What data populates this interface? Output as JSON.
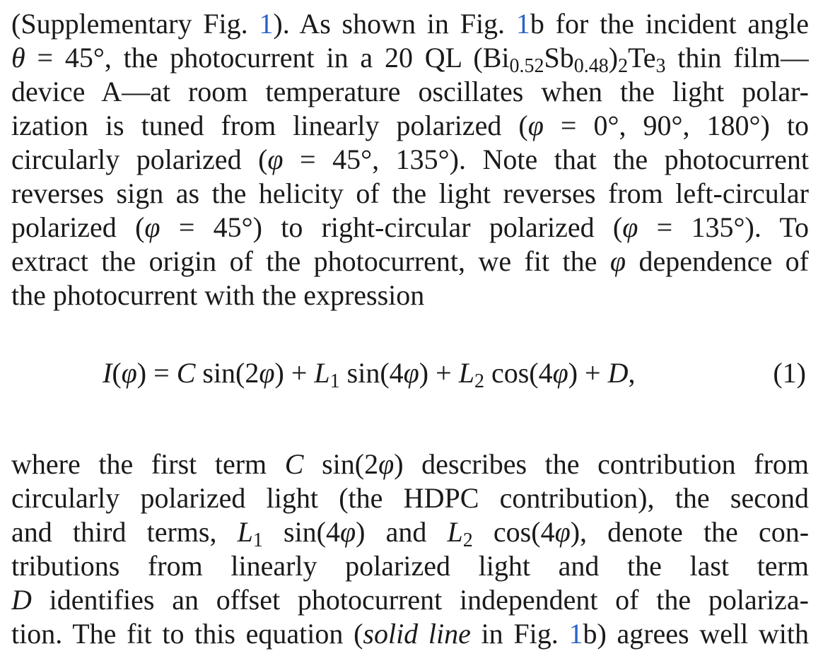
{
  "paragraph1": {
    "l1_a": "(Supplementary Fig. ",
    "l1_link1": "1",
    "l1_b": "). As shown in Fig. ",
    "l1_link2": "1",
    "l1_c": "b for the incident angle",
    "l2_theta": "θ",
    "l2_a": " = 45°, the photocurrent in a 20 QL (Bi",
    "l2_sub1": "0.52",
    "l2_b": "Sb",
    "l2_sub2": "0.48",
    "l2_c": ")",
    "l2_sub3": "2",
    "l2_d": "Te",
    "l2_sub4": "3",
    "l2_e": " thin film—",
    "l3": "device A—at room temperature oscillates when the light polar-",
    "l4_a": "ization is tuned from linearly polarized (",
    "l4_phi": "φ",
    "l4_b": " = 0°, 90°, 180°) to",
    "l5_a": "circularly polarized (",
    "l5_phi": "φ",
    "l5_b": " = 45°, 135°). Note that the photocurrent",
    "l6": "reverses sign as the helicity of the light reverses from left-circular",
    "l7_a": "polarized (",
    "l7_phi1": "φ",
    "l7_b": " = 45°) to right-circular polarized (",
    "l7_phi2": "φ",
    "l7_c": " = 135°). To",
    "l8_a": "extract the origin of the photocurrent, we fit the ",
    "l8_phi": "φ",
    "l8_b": " dependence of",
    "l9": "the photocurrent with the expression"
  },
  "equation": {
    "I": "I",
    "lp1": "(",
    "phi1": "φ",
    "rp1": ") = ",
    "C": "C",
    "sin1": " sin(2",
    "phi2": "φ",
    "p1": ") + ",
    "L1": "L",
    "L1sub": "1",
    "sin2": " sin(4",
    "phi3": "φ",
    "p2": ") + ",
    "L2": "L",
    "L2sub": "2",
    "cos": " cos(4",
    "phi4": "φ",
    "p3": ") + ",
    "D": "D",
    "end": ",",
    "number": "(1)"
  },
  "paragraph2": {
    "l1_a": "where the first term ",
    "l1_C": "C",
    "l1_b": " sin(2",
    "l1_phi": "φ",
    "l1_c": ") describes the contribution from",
    "l2": "circularly polarized light (the HDPC contribution), the second",
    "l3_a": "and third terms, ",
    "l3_L1": "L",
    "l3_L1sub": "1",
    "l3_b": " sin(4",
    "l3_phi1": "φ",
    "l3_c": ") and ",
    "l3_L2": "L",
    "l3_L2sub": "2",
    "l3_d": " cos(4",
    "l3_phi2": "φ",
    "l3_e": "), denote the con-",
    "l4": "tributions from linearly polarized light and the last term",
    "l5_D": "D",
    "l5_a": " identifies an offset photocurrent independent of the polariza-",
    "l6_a": "tion. The fit to this equation (",
    "l6_it": "solid line",
    "l6_b": " in Fig. ",
    "l6_link": "1",
    "l6_c": "b) agrees well with"
  }
}
